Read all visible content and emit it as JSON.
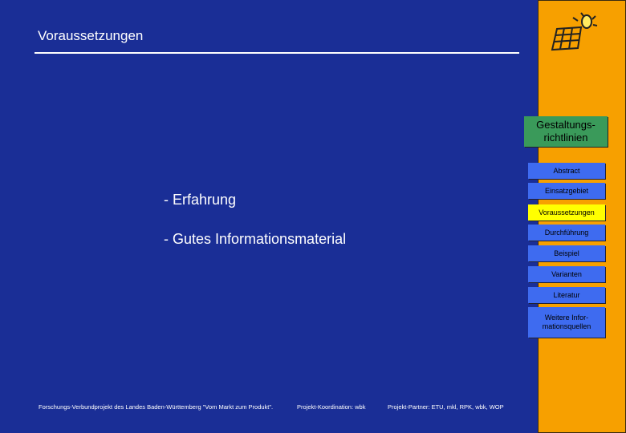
{
  "header": {
    "title": "Voraussetzungen"
  },
  "bullets": [
    "- Erfahrung",
    "- Gutes Informationsmaterial"
  ],
  "sidebar": {
    "heading": "Gestaltungs- richtlinien",
    "nav": [
      "Abstract",
      "Einsatzgebiet",
      "Voraussetzungen",
      "Durchführung",
      "Beispiel",
      "Varianten",
      "Literatur",
      "Weitere Infor- mationsquellen"
    ],
    "active": 2
  },
  "footer": [
    "Forschungs-Verbundprojekt des Landes Baden-Württemberg \"Vom Markt zum Produkt\".",
    "Projekt-Koordination: wbk",
    "Projekt-Partner: ETU, mkl, RPK, wbk, WOP"
  ]
}
